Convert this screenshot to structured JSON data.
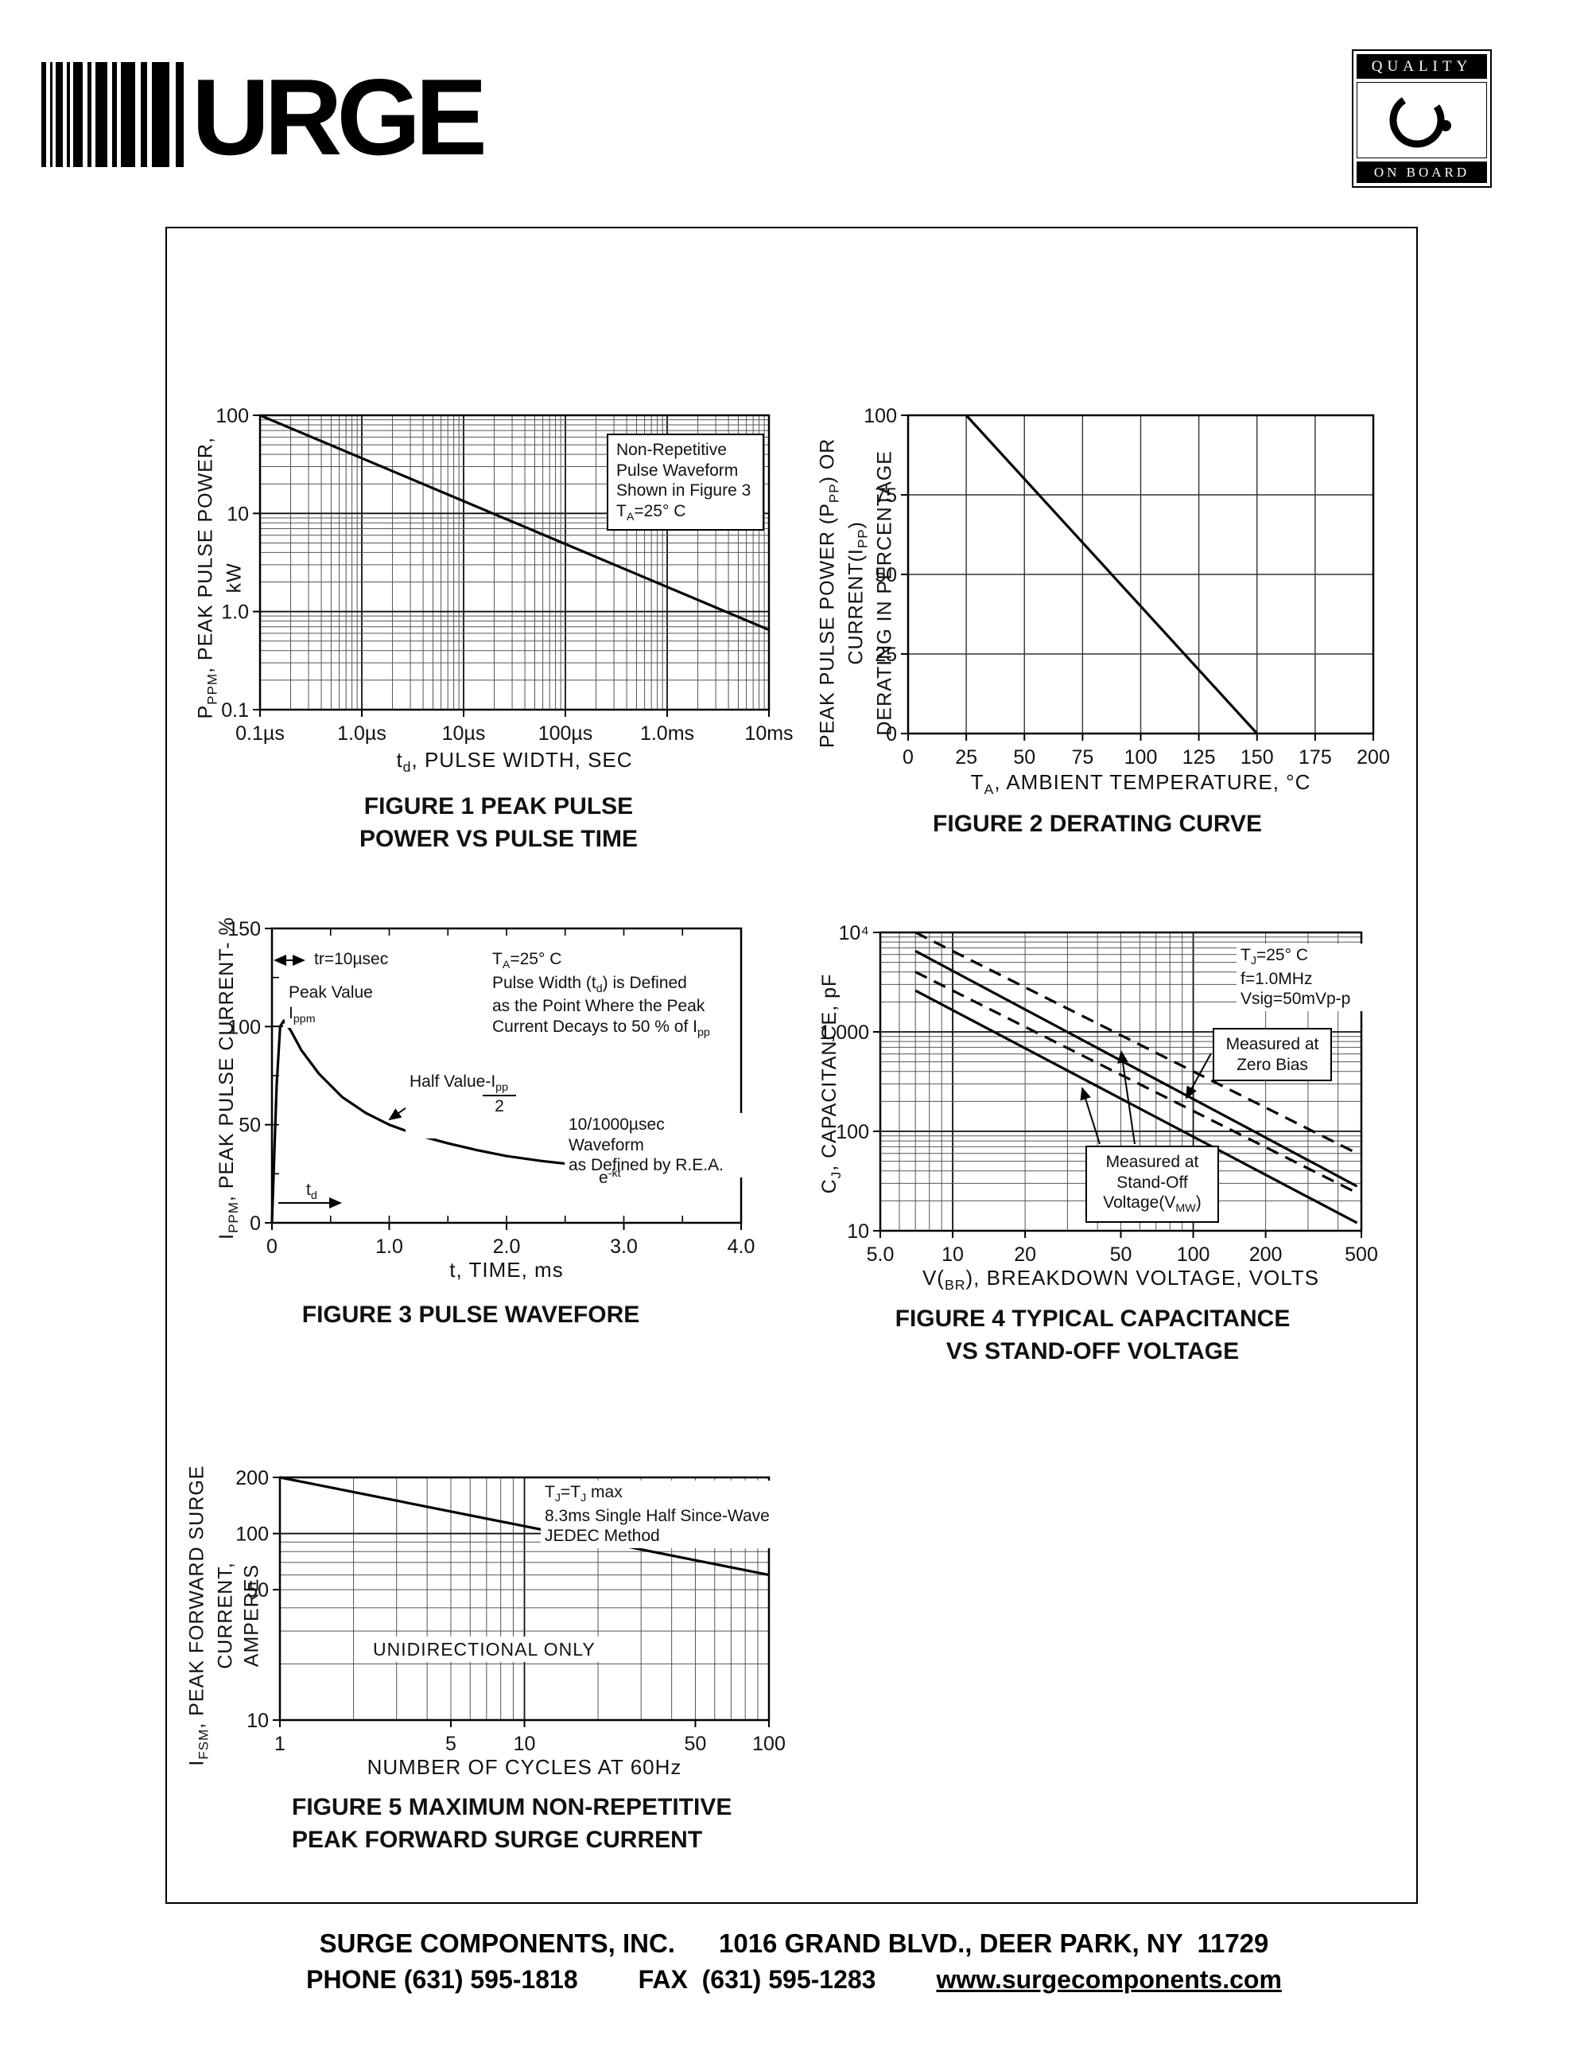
{
  "logo": {
    "text": "URGE"
  },
  "badge": {
    "top_label": "QUALITY",
    "bottom_label": "ON BOARD"
  },
  "footer": {
    "company": "SURGE COMPONENTS, INC.",
    "address": "1016 GRAND BLVD., DEER PARK, NY  11729",
    "phone": "PHONE (631) 595-1818",
    "fax": "FAX  (631) 595-1283",
    "website": "www.surgecomponents.com"
  },
  "chart_data": [
    {
      "id": "figure-1",
      "type": "line",
      "title": "FIGURE 1 PEAK PULSE\nPOWER VS PULSE TIME",
      "xlabel": "t_{d}, PULSE WIDTH, SEC",
      "ylabel": "P_{PPM}, PEAK PULSE POWER, kW",
      "x": {
        "scale": "log",
        "min": 1e-07,
        "max": 0.01,
        "ticks": [
          {
            "v": 1e-07,
            "label": "0.1µs"
          },
          {
            "v": 1e-06,
            "label": "1.0µs"
          },
          {
            "v": 1e-05,
            "label": "10µs"
          },
          {
            "v": 0.0001,
            "label": "100µs"
          },
          {
            "v": 0.001,
            "label": "1.0ms"
          },
          {
            "v": 0.01,
            "label": "10ms"
          }
        ]
      },
      "y": {
        "scale": "log",
        "min": 0.1,
        "max": 100,
        "ticks": [
          {
            "v": 100,
            "label": "100"
          },
          {
            "v": 10,
            "label": "10"
          },
          {
            "v": 1,
            "label": "1.0"
          },
          {
            "v": 0.1,
            "label": "0.1"
          }
        ]
      },
      "grid": {
        "x": "log",
        "y": "log"
      },
      "series": [
        {
          "name": "non-repetitive peak pulse power",
          "dash": false,
          "points": [
            [
              1e-07,
              100
            ],
            [
              0.01,
              0.65
            ]
          ]
        }
      ],
      "annotations": [
        {
          "text": "Non-Repetitive\nPulse Waveform\nShown in Figure 3\nT_{A}=25° C"
        }
      ]
    },
    {
      "id": "figure-2",
      "type": "line",
      "title": "FIGURE 2 DERATING CURVE",
      "xlabel": "T_{A}, AMBIENT  TEMPERATURE, °C",
      "ylabel": "PEAK PULSE POWER (P_{PP}) OR CURRENT(I_{PP})\nDERATING IN PERCENTAGE",
      "x": {
        "scale": "linear",
        "min": 0,
        "max": 200,
        "ticks": [
          {
            "v": 0,
            "label": "0"
          },
          {
            "v": 25,
            "label": "25"
          },
          {
            "v": 50,
            "label": "50"
          },
          {
            "v": 75,
            "label": "75"
          },
          {
            "v": 100,
            "label": "100"
          },
          {
            "v": 125,
            "label": "125"
          },
          {
            "v": 150,
            "label": "150"
          },
          {
            "v": 175,
            "label": "175"
          },
          {
            "v": 200,
            "label": "200"
          }
        ]
      },
      "y": {
        "scale": "linear",
        "min": 0,
        "max": 100,
        "ticks": [
          {
            "v": 0,
            "label": "0"
          },
          {
            "v": 25,
            "label": "25"
          },
          {
            "v": 50,
            "label": "50"
          },
          {
            "v": 75,
            "label": "75"
          },
          {
            "v": 100,
            "label": "100"
          }
        ]
      },
      "grid": {
        "x": 25,
        "y": 25
      },
      "series": [
        {
          "name": "derating curve",
          "dash": false,
          "points": [
            [
              25,
              100
            ],
            [
              150,
              0
            ]
          ]
        }
      ],
      "annotations": []
    },
    {
      "id": "figure-3",
      "type": "line",
      "title": "FIGURE 3 PULSE WAVEFORE",
      "xlabel": "t, TIME, ms",
      "ylabel": "I_{PPM}, PEAK PULSE CURRENT- %",
      "x": {
        "scale": "linear",
        "min": 0,
        "max": 4,
        "ticks": [
          {
            "v": 0,
            "label": "0"
          },
          {
            "v": 1,
            "label": "1.0"
          },
          {
            "v": 2,
            "label": "2.0"
          },
          {
            "v": 3,
            "label": "3.0"
          },
          {
            "v": 4,
            "label": "4.0"
          }
        ]
      },
      "y": {
        "scale": "linear",
        "min": 0,
        "max": 150,
        "ticks": [
          {
            "v": 0,
            "label": "0"
          },
          {
            "v": 50,
            "label": "50"
          },
          {
            "v": 100,
            "label": "100"
          },
          {
            "v": 150,
            "label": "150"
          }
        ]
      },
      "grid": {
        "xMinorTickStep": 0.5,
        "yMinorTickStep": 25
      },
      "series": [
        {
          "name": "10/1000µsec pulse waveform",
          "dash": false,
          "points": [
            [
              0,
              0
            ],
            [
              0.04,
              70
            ],
            [
              0.07,
              100
            ],
            [
              0.1,
              103
            ],
            [
              0.16,
              98
            ],
            [
              0.25,
              88
            ],
            [
              0.4,
              76
            ],
            [
              0.6,
              64
            ],
            [
              0.8,
              56
            ],
            [
              1.0,
              50
            ],
            [
              1.25,
              44.5
            ],
            [
              1.5,
              40.5
            ],
            [
              1.75,
              37
            ],
            [
              2.0,
              34
            ],
            [
              2.3,
              31.5
            ],
            [
              2.6,
              29.5
            ],
            [
              2.9,
              28
            ],
            [
              3.0,
              27.8
            ]
          ]
        }
      ],
      "annotations": [
        {
          "text": "tr=10µsec"
        },
        {
          "text": "Peak Value\nI_{ppm}"
        },
        {
          "text": "Half Value-I_{pp}",
          "denom": "2"
        },
        {
          "text": "T_{A}=25° C\nPulse Width (t_{d}) is Defined\nas the Point Where the Peak\nCurrent Decays to 50 % of I_{pp}"
        },
        {
          "text": "10/1000µsec Waveform\nas Defined by R.E.A."
        },
        {
          "text": "e^{-kt}"
        },
        {
          "text": "t_{d}"
        }
      ]
    },
    {
      "id": "figure-4",
      "type": "line",
      "title": "FIGURE 4 TYPICAL CAPACITANCE\nVS STAND-OFF VOLTAGE",
      "xlabel": "V(_{BR}), BREAKDOWN  VOLTAGE, VOLTS",
      "ylabel": "C_{J}, CAPACITANCE, pF",
      "x": {
        "scale": "log",
        "min": 5,
        "max": 500,
        "ticks": [
          {
            "v": 5,
            "label": "5.0"
          },
          {
            "v": 10,
            "label": "10"
          },
          {
            "v": 20,
            "label": "20"
          },
          {
            "v": 50,
            "label": "50"
          },
          {
            "v": 100,
            "label": "100"
          },
          {
            "v": 200,
            "label": "200"
          },
          {
            "v": 500,
            "label": "500"
          }
        ]
      },
      "y": {
        "scale": "log",
        "min": 10,
        "max": 10000,
        "ticks": [
          {
            "v": 10,
            "label": "10"
          },
          {
            "v": 100,
            "label": "100"
          },
          {
            "v": 1000,
            "label": "1,000"
          },
          {
            "v": 10000,
            "label": "10⁴"
          }
        ]
      },
      "grid": {
        "x": "log",
        "y": "log"
      },
      "series": [
        {
          "name": "measured at zero bias (upper)",
          "dash": true,
          "points": [
            [
              7,
              10000
            ],
            [
              480,
              60
            ]
          ]
        },
        {
          "name": "measured at stand-off voltage (upper)",
          "dash": false,
          "points": [
            [
              7,
              6500
            ],
            [
              480,
              28
            ]
          ]
        },
        {
          "name": "measured at zero bias (lower)",
          "dash": true,
          "points": [
            [
              7,
              4000
            ],
            [
              480,
              24
            ]
          ]
        },
        {
          "name": "measured at stand-off voltage (lower)",
          "dash": false,
          "points": [
            [
              7,
              2600
            ],
            [
              480,
              12
            ]
          ]
        }
      ],
      "annotations": [
        {
          "text": "T_{J}=25° C\nf=1.0MHz\nVsig=50mVp-p"
        },
        {
          "text": "Measured at\nZero Bias"
        },
        {
          "text": "Measured at\nStand-Off\nVoltage(V_{MW})"
        }
      ]
    },
    {
      "id": "figure-5",
      "type": "line",
      "title": "FIGURE 5 MAXIMUM NON-REPETITIVE\nPEAK FORWARD SURGE CURRENT",
      "xlabel": "NUMBER  OF  CYCLES  AT  60Hz",
      "ylabel": "I_{FSM}, PEAK FORWARD SURGE CURRENT,\nAMPERES",
      "x": {
        "scale": "log",
        "min": 1,
        "max": 100,
        "ticks": [
          {
            "v": 1,
            "label": "1"
          },
          {
            "v": 5,
            "label": "5"
          },
          {
            "v": 10,
            "label": "10"
          },
          {
            "v": 50,
            "label": "50"
          },
          {
            "v": 100,
            "label": "100"
          }
        ]
      },
      "y": {
        "scale": "log",
        "min": 10,
        "max": 200,
        "ticks": [
          {
            "v": 10,
            "label": "10"
          },
          {
            "v": 50,
            "label": "50"
          },
          {
            "v": 100,
            "label": "100"
          },
          {
            "v": 200,
            "label": "200"
          }
        ]
      },
      "grid": {
        "x": "log",
        "y": "log"
      },
      "series": [
        {
          "name": "peak forward surge current",
          "dash": false,
          "points": [
            [
              1,
              200
            ],
            [
              100,
              60
            ]
          ]
        }
      ],
      "annotations": [
        {
          "text": "T_{J}=T_{J} max\n8.3ms Single Half Since-Wave\nJEDEC Method"
        },
        {
          "text": "UNIDIRECTIONAL ONLY"
        }
      ]
    }
  ]
}
